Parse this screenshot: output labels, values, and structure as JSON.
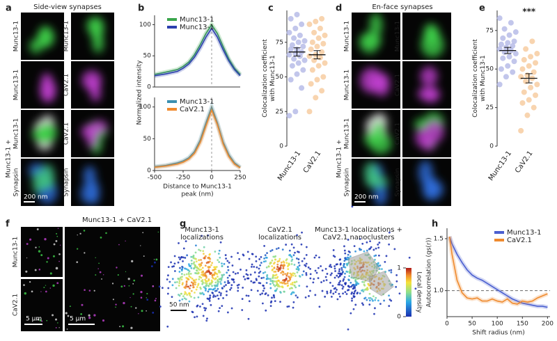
{
  "figure": {
    "panel_labels": [
      "a",
      "b",
      "c",
      "d",
      "e",
      "f",
      "g",
      "h"
    ],
    "a": {
      "title": "Side-view synapses",
      "left_labels": [
        "Munc13-1",
        "Munc13-1",
        "Munc13-1",
        "Synapsin"
      ],
      "left_combo": "Munc13-1 +",
      "right_labels": [
        "Munc13-1",
        "CaV2.1",
        "CaV2.1",
        "Synapsin"
      ],
      "scale_bar": "200 nm"
    },
    "b": {
      "ylabel": "Normalized intensity"
    },
    "d": {
      "title": "En-face synapses",
      "left_labels": [
        "Munc13-1",
        "Munc13-1",
        "Munc13-1",
        "Synapsin"
      ],
      "left_combo": "Munc13-1 +",
      "right_labels": [
        "Munc13-1",
        "CaV2.1",
        "CaV2.1",
        "Synapsin"
      ],
      "scale_bar": "200 nm"
    },
    "f": {
      "title_parts": [
        "Munc13-1",
        " + ",
        "CaV2.1"
      ],
      "row_labels": [
        "Munc13-1",
        "CaV2.1"
      ],
      "scale_bars": [
        "5 µm",
        "5 µm"
      ]
    },
    "g": {
      "titles": [
        [
          "Munc13-1",
          "localizations"
        ],
        [
          "CaV2.1",
          "localizations"
        ],
        [
          "Munc13-1  localizations +",
          "CaV2.1 nanoclusters"
        ]
      ],
      "colorbar_label": "Local density",
      "colorbar_ticks": [
        0,
        1
      ],
      "scale_bar": "50 nm"
    }
  },
  "chart_data": [
    {
      "type": "line",
      "xlim": [
        -500,
        250
      ],
      "ylim": [
        0,
        115
      ],
      "yticks": [
        0,
        50,
        100
      ],
      "reference_x": 0,
      "legend": "upper left",
      "x": [
        -500,
        -400,
        -300,
        -250,
        -200,
        -150,
        -100,
        -50,
        0,
        50,
        100,
        150,
        200,
        250
      ],
      "series": [
        {
          "name": "Munc13-1",
          "color": "#3aa64c",
          "values": [
            20,
            24,
            28,
            33,
            40,
            52,
            68,
            86,
            100,
            86,
            65,
            45,
            30,
            20
          ]
        },
        {
          "name": "Munc13-1",
          "color": "#2c3fae",
          "values": [
            18,
            21,
            25,
            30,
            37,
            48,
            63,
            80,
            94,
            80,
            60,
            42,
            28,
            18
          ]
        }
      ]
    },
    {
      "type": "line",
      "xlim": [
        -500,
        250
      ],
      "ylim": [
        0,
        115
      ],
      "yticks": [
        0,
        50,
        100
      ],
      "xticks": [
        -500,
        -250,
        0,
        250
      ],
      "reference_x": 0,
      "legend": "upper left",
      "xlabel": [
        "Distance to Munc13-1",
        "peak (nm)"
      ],
      "x": [
        -500,
        -400,
        -300,
        -250,
        -200,
        -150,
        -100,
        -50,
        0,
        50,
        100,
        150,
        200,
        250
      ],
      "series": [
        {
          "name": "Munc13-1",
          "color": "#3a8fb0",
          "values": [
            6,
            8,
            12,
            15,
            20,
            30,
            48,
            75,
            100,
            75,
            45,
            25,
            12,
            5
          ]
        },
        {
          "name": "CaV2.1",
          "color": "#ef8a2e",
          "values": [
            5,
            7,
            10,
            13,
            18,
            27,
            44,
            70,
            95,
            72,
            42,
            22,
            10,
            4
          ]
        }
      ]
    },
    {
      "type": "strip",
      "ylim": [
        0,
        98
      ],
      "yticks": [
        0,
        25,
        50,
        75
      ],
      "ylabel": [
        "Colocalization coefficient",
        "with Munc13-1"
      ],
      "categories": [
        "Munc13-1",
        "CaV2.1"
      ],
      "series": [
        {
          "color": "#b3b8e6",
          "values": [
            22,
            25,
            42,
            48,
            52,
            55,
            58,
            60,
            62,
            63,
            65,
            66,
            67,
            68,
            70,
            70,
            72,
            73,
            75,
            76,
            78,
            80,
            82,
            85,
            88,
            92,
            95
          ]
        },
        {
          "color": "#f6c99b",
          "values": [
            25,
            35,
            40,
            45,
            48,
            50,
            55,
            58,
            60,
            62,
            64,
            65,
            66,
            68,
            70,
            72,
            74,
            75,
            78,
            80,
            82,
            85,
            88,
            90,
            92
          ]
        }
      ],
      "means": [
        68,
        66
      ],
      "errors": [
        3,
        3
      ]
    },
    {
      "type": "strip",
      "ylim": [
        0,
        88
      ],
      "yticks": [
        0,
        25,
        50,
        75
      ],
      "ylabel": [
        "Colocalization coefficient",
        "with Munc13-1"
      ],
      "categories": [
        "Munc13-1",
        "CaV2.1"
      ],
      "series": [
        {
          "color": "#b3b8e6",
          "values": [
            40,
            45,
            48,
            50,
            52,
            55,
            57,
            58,
            60,
            61,
            62,
            63,
            64,
            65,
            66,
            67,
            68,
            70,
            72,
            74,
            76,
            80,
            83
          ]
        },
        {
          "color": "#f6c99b",
          "values": [
            10,
            20,
            25,
            28,
            30,
            33,
            35,
            38,
            40,
            42,
            44,
            45,
            46,
            48,
            50,
            52,
            54,
            56,
            58,
            60,
            63,
            68
          ]
        }
      ],
      "means": [
        62,
        44
      ],
      "errors": [
        2,
        3
      ],
      "annotation": "***"
    },
    {
      "type": "line",
      "xlim": [
        0,
        205
      ],
      "ylim": [
        0.75,
        1.6
      ],
      "legend": "upper right",
      "yticks": [
        {
          "value": 1,
          "label": "1.0"
        },
        {
          "value": 1.5,
          "label": "1.5"
        }
      ],
      "xticks": [
        0,
        50,
        100,
        150,
        200
      ],
      "reference_y": 1,
      "xlabel": [
        "Shift radius (nm)"
      ],
      "ylabel": [
        "Autocorrelation (gs(r))"
      ],
      "x": [
        5,
        10,
        20,
        30,
        40,
        50,
        60,
        70,
        80,
        90,
        100,
        110,
        120,
        130,
        140,
        150,
        160,
        170,
        180,
        190,
        200
      ],
      "series": [
        {
          "name": "Munc13-1",
          "color": "#4a5fd0",
          "values": [
            1.52,
            1.45,
            1.35,
            1.27,
            1.2,
            1.15,
            1.12,
            1.1,
            1.07,
            1.04,
            1.01,
            0.98,
            0.95,
            0.92,
            0.9,
            0.88,
            0.87,
            0.86,
            0.85,
            0.85,
            0.84
          ]
        },
        {
          "name": "CaV2.1",
          "color": "#ef8a2e",
          "values": [
            1.52,
            1.35,
            1.1,
            0.98,
            0.93,
            0.92,
            0.93,
            0.9,
            0.9,
            0.92,
            0.9,
            0.89,
            0.92,
            0.88,
            0.87,
            0.9,
            0.89,
            0.9,
            0.93,
            0.95,
            0.97
          ]
        }
      ]
    }
  ]
}
